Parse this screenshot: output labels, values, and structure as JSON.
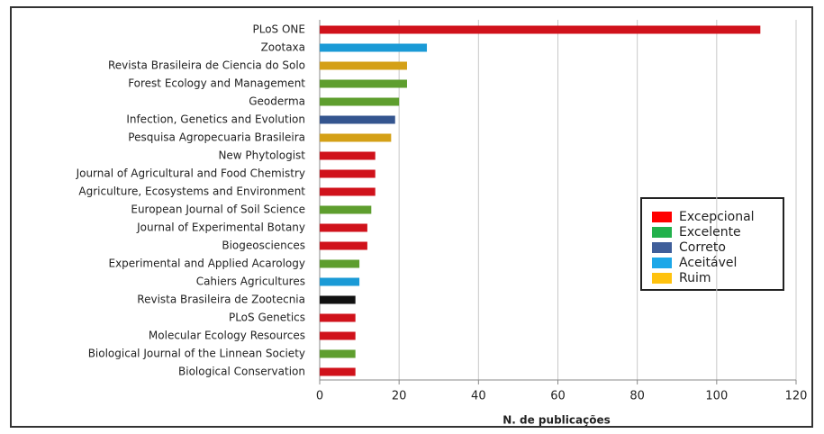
{
  "chart_data": {
    "type": "barh",
    "categories": [
      "PLoS ONE",
      "Zootaxa",
      "Revista Brasileira de Ciencia do Solo",
      "Forest Ecology and Management",
      "Geoderma",
      "Infection, Genetics and Evolution",
      "Pesquisa Agropecuaria Brasileira",
      "New Phytologist",
      "Journal of Agricultural and Food Chemistry",
      "Agriculture, Ecosystems and Environment",
      "European Journal of Soil Science",
      "Journal of Experimental Botany",
      "Biogeosciences",
      "Experimental and Applied Acarology",
      "Cahiers Agricultures",
      "Revista Brasileira de Zootecnia",
      "PLoS Genetics",
      "Molecular Ecology Resources",
      "Biological Journal of the Linnean Society",
      "Biological Conservation"
    ],
    "values": [
      111,
      27,
      22,
      22,
      20,
      19,
      18,
      14,
      14,
      14,
      13,
      12,
      12,
      10,
      10,
      9,
      9,
      9,
      9,
      9
    ],
    "colors": [
      "#d0121b",
      "#1a9ad6",
      "#d4a017",
      "#5e9e2e",
      "#5e9e2e",
      "#34558f",
      "#d4a017",
      "#d0121b",
      "#d0121b",
      "#d0121b",
      "#5e9e2e",
      "#d0121b",
      "#d0121b",
      "#5e9e2e",
      "#1a9ad6",
      "#111111",
      "#d0121b",
      "#d0121b",
      "#5e9e2e",
      "#d0121b"
    ],
    "xlabel": "N. de publicações",
    "xlim": [
      0,
      120
    ],
    "xticks": [
      0,
      20,
      40,
      60,
      80,
      100,
      120
    ],
    "grid": true,
    "legend": [
      {
        "name": "Excepcional",
        "color": "#ff0000"
      },
      {
        "name": "Excelente",
        "color": "#22b14c"
      },
      {
        "name": "Correto",
        "color": "#3f5e9a"
      },
      {
        "name": "Aceitável",
        "color": "#1ca7e8"
      },
      {
        "name": "Ruim",
        "color": "#ffc20e"
      }
    ]
  }
}
